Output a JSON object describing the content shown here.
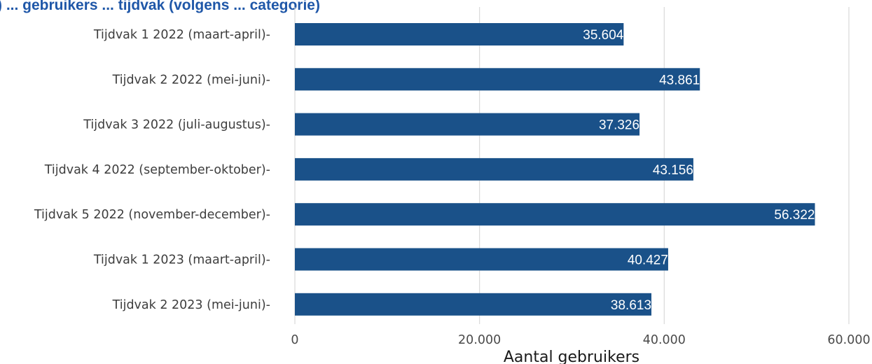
{
  "header": {
    "title_fragment": ") ... gebruikers ... tijdvak (volgens ... categorie)"
  },
  "chart_data": {
    "type": "bar",
    "orientation": "horizontal",
    "categories": [
      "Tijdvak 1 2022 (maart-april)",
      "Tijdvak 2 2022 (mei-juni)",
      "Tijdvak 3 2022 (juli-augustus)",
      "Tijdvak 4 2022 (september-oktober)",
      "Tijdvak 5 2022 (november-december)",
      "Tijdvak 1 2023 (maart-april)",
      "Tijdvak 2 2023 (mei-juni)"
    ],
    "values": [
      35604,
      43861,
      37326,
      43156,
      56322,
      40427,
      38613
    ],
    "value_labels": [
      "35.604",
      "43.861",
      "37.326",
      "43.156",
      "56.322",
      "40.427",
      "38.613"
    ],
    "xlabel": "Aantal gebruikers",
    "ylabel": "",
    "xlim": [
      0,
      60000
    ],
    "x_ticks": [
      0,
      20000,
      40000,
      60000
    ],
    "x_tick_labels": [
      "0",
      "20.000",
      "40.000",
      "60.000"
    ],
    "bar_color": "#1a5189",
    "grid": true
  }
}
